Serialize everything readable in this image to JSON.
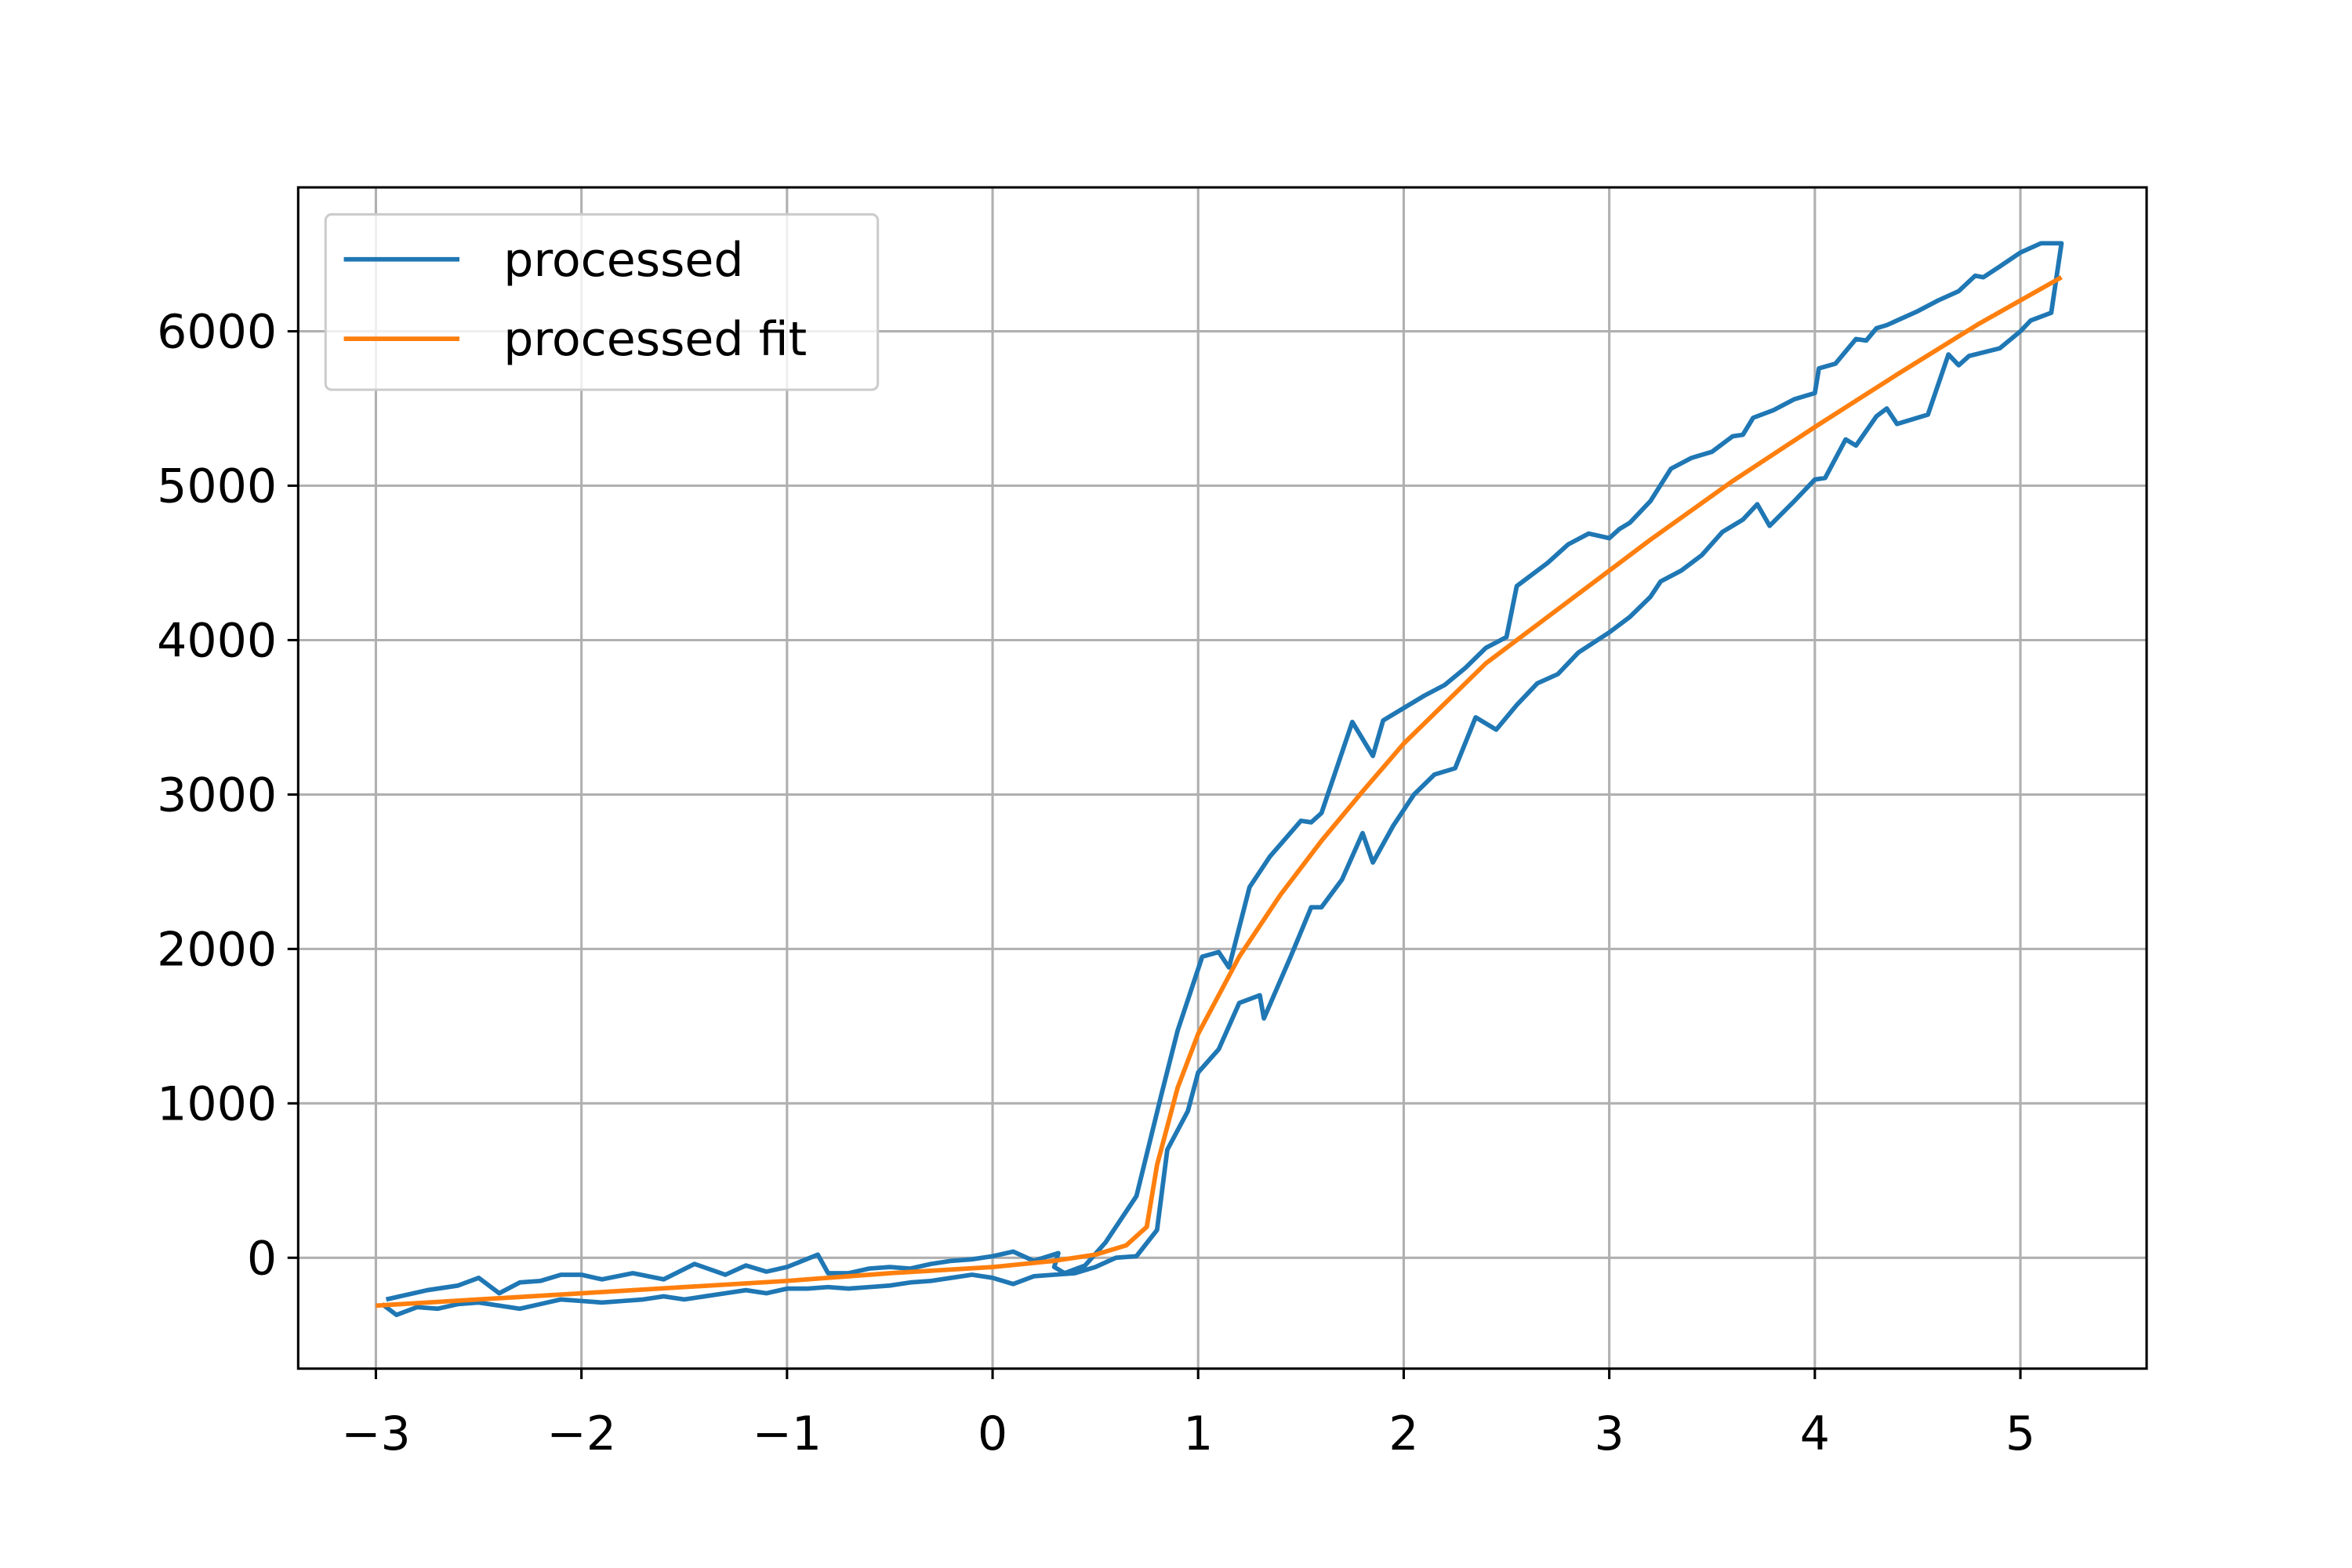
{
  "chart_data": {
    "type": "line",
    "xlim": [
      -3.378,
      5.614
    ],
    "ylim": [
      -718,
      6932
    ],
    "xticks": [
      {
        "value": -3,
        "label": "−3"
      },
      {
        "value": -2,
        "label": "−2"
      },
      {
        "value": -1,
        "label": "−1"
      },
      0,
      1,
      2,
      3,
      4,
      5
    ],
    "yticks": [
      0,
      1000,
      2000,
      3000,
      4000,
      5000,
      6000
    ],
    "grid": true,
    "legend": "upper left",
    "series": [
      {
        "name": "processed",
        "color": "#1f77b4",
        "x": [
          -2.97,
          -2.9,
          -2.8,
          -2.7,
          -2.6,
          -2.5,
          -2.4,
          -2.3,
          -2.2,
          -2.1,
          -2.0,
          -1.9,
          -1.8,
          -1.7,
          -1.6,
          -1.5,
          -1.4,
          -1.3,
          -1.2,
          -1.1,
          -1.0,
          -0.9,
          -0.8,
          -0.7,
          -0.6,
          -0.5,
          -0.4,
          -0.3,
          -0.2,
          -0.1,
          0.0,
          0.1,
          0.2,
          0.3,
          0.4,
          0.5,
          0.6,
          0.7,
          0.8,
          0.85,
          0.95,
          1.0,
          1.1,
          1.2,
          1.3,
          1.32,
          1.45,
          1.55,
          1.6,
          1.7,
          1.8,
          1.85,
          1.95,
          2.05,
          2.15,
          2.25,
          2.35,
          2.45,
          2.55,
          2.65,
          2.75,
          2.85,
          3.0,
          3.1,
          3.2,
          3.25,
          3.35,
          3.45,
          3.55,
          3.65,
          3.72,
          3.78,
          3.9,
          4.0,
          4.05,
          4.15,
          4.2,
          4.3,
          4.35,
          4.4,
          4.55,
          4.65,
          4.7,
          4.75,
          4.9,
          5.0,
          5.05,
          5.15,
          5.2,
          5.1,
          5.0,
          4.9,
          4.82,
          4.78,
          4.7,
          4.6,
          4.5,
          4.35,
          4.3,
          4.25,
          4.2,
          4.1,
          4.02,
          4.0,
          3.9,
          3.8,
          3.7,
          3.65,
          3.6,
          3.5,
          3.4,
          3.3,
          3.2,
          3.1,
          3.05,
          3.0,
          2.9,
          2.8,
          2.7,
          2.6,
          2.55,
          2.5,
          2.4,
          2.3,
          2.2,
          2.1,
          2.0,
          1.9,
          1.85,
          1.75,
          1.6,
          1.55,
          1.5,
          1.35,
          1.25,
          1.15,
          1.1,
          1.02,
          0.9,
          0.82,
          0.7,
          0.55,
          0.45,
          0.35,
          0.3,
          0.32,
          0.2,
          0.1,
          0.0,
          -0.1,
          -0.2,
          -0.3,
          -0.4,
          -0.5,
          -0.6,
          -0.7,
          -0.8,
          -0.85,
          -1.0,
          -1.1,
          -1.2,
          -1.3,
          -1.45,
          -1.6,
          -1.75,
          -1.9,
          -2.0,
          -2.1,
          -2.2,
          -2.3,
          -2.4,
          -2.5,
          -2.6,
          -2.75,
          -2.95
        ],
        "values": [
          -300,
          -370,
          -320,
          -330,
          -300,
          -290,
          -310,
          -330,
          -300,
          -270,
          -280,
          -290,
          -280,
          -270,
          -250,
          -270,
          -250,
          -230,
          -210,
          -230,
          -200,
          -200,
          -190,
          -200,
          -190,
          -180,
          -160,
          -150,
          -130,
          -110,
          -130,
          -170,
          -120,
          -110,
          -100,
          -60,
          0,
          10,
          180,
          700,
          950,
          1200,
          1350,
          1650,
          1700,
          1550,
          1950,
          2270,
          2270,
          2450,
          2750,
          2560,
          2800,
          3000,
          3130,
          3170,
          3500,
          3420,
          3580,
          3720,
          3780,
          3920,
          4050,
          4150,
          4280,
          4380,
          4450,
          4550,
          4700,
          4780,
          4880,
          4740,
          4900,
          5040,
          5050,
          5300,
          5260,
          5450,
          5500,
          5400,
          5460,
          5850,
          5780,
          5840,
          5890,
          6000,
          6070,
          6120,
          6570,
          6570,
          6510,
          6420,
          6350,
          6360,
          6260,
          6200,
          6130,
          6040,
          6020,
          5940,
          5950,
          5790,
          5760,
          5600,
          5560,
          5490,
          5440,
          5330,
          5320,
          5220,
          5180,
          5110,
          4900,
          4760,
          4720,
          4660,
          4690,
          4620,
          4500,
          4400,
          4350,
          4020,
          3950,
          3820,
          3710,
          3640,
          3560,
          3480,
          3250,
          3470,
          2880,
          2820,
          2830,
          2600,
          2400,
          1880,
          1980,
          1950,
          1470,
          1050,
          400,
          100,
          -50,
          -100,
          -60,
          30,
          -20,
          40,
          10,
          -10,
          -20,
          -40,
          -70,
          -60,
          -70,
          -100,
          -100,
          20,
          -60,
          -90,
          -50,
          -110,
          -40,
          -140,
          -100,
          -140,
          -110,
          -110,
          -150,
          -160,
          -230,
          -130,
          -180,
          -210,
          -270
        ]
      },
      {
        "name": "processed fit",
        "color": "#ff7f0e",
        "x": [
          -3,
          -2,
          -1,
          -0.5,
          0,
          0.3,
          0.5,
          0.65,
          0.75,
          0.8,
          0.85,
          0.9,
          1.0,
          1.2,
          1.4,
          1.6,
          1.8,
          2.0,
          2.4,
          2.8,
          3.2,
          3.6,
          4.0,
          4.4,
          4.8,
          5.2
        ],
        "values": [
          -310,
          -230,
          -150,
          -100,
          -60,
          -20,
          20,
          80,
          200,
          600,
          850,
          1100,
          1450,
          1950,
          2350,
          2700,
          3020,
          3330,
          3850,
          4250,
          4650,
          5030,
          5380,
          5720,
          6050,
          6350
        ]
      }
    ]
  }
}
